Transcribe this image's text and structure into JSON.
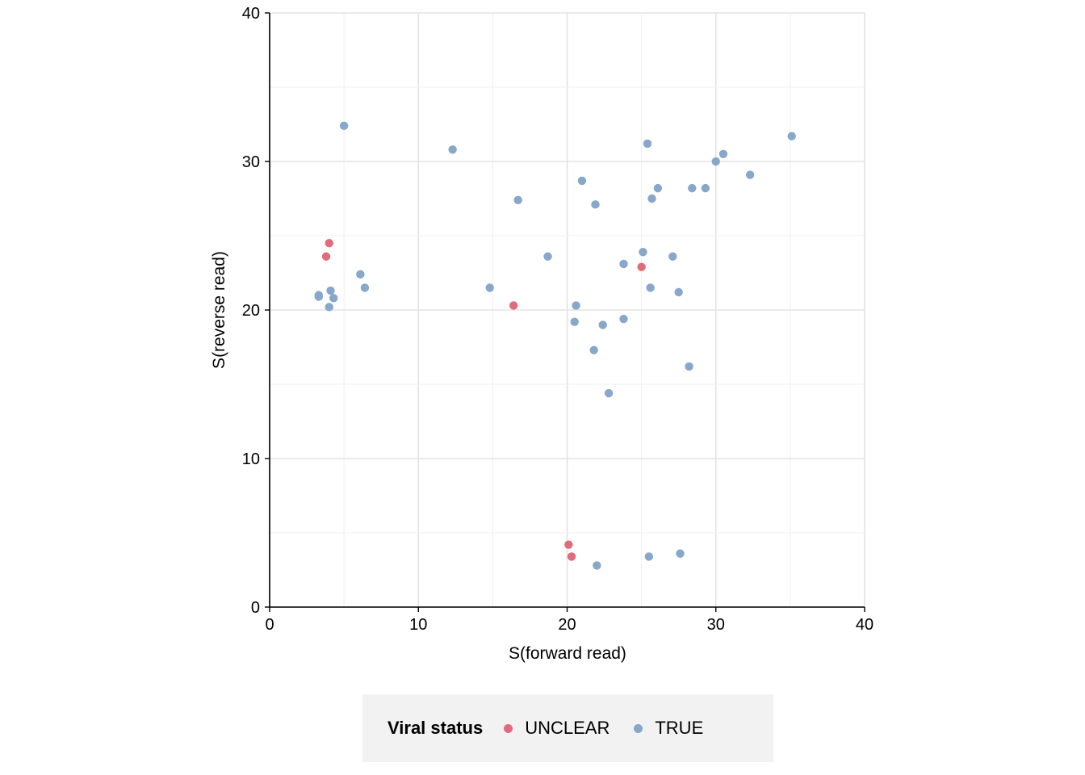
{
  "chart_data": {
    "type": "scatter",
    "xlabel": "S(forward read)",
    "ylabel": "S(reverse read)",
    "xlim": [
      0,
      40
    ],
    "ylim": [
      0,
      40
    ],
    "xticks": [
      "0",
      "10",
      "20",
      "30",
      "40"
    ],
    "yticks": [
      "0",
      "10",
      "20",
      "30",
      "40"
    ],
    "grid": true,
    "legend": {
      "title": "Viral status",
      "position": "bottom",
      "entries": [
        {
          "name": "UNCLEAR",
          "color": "#e06b7a"
        },
        {
          "name": "TRUE",
          "color": "#87a7cb"
        }
      ]
    },
    "series": [
      {
        "name": "UNCLEAR",
        "color": "#e06b7a",
        "points": [
          [
            4.0,
            24.5
          ],
          [
            3.8,
            23.6
          ],
          [
            16.4,
            20.3
          ],
          [
            25.0,
            22.9
          ],
          [
            20.1,
            4.2
          ],
          [
            20.3,
            3.4
          ]
        ]
      },
      {
        "name": "TRUE",
        "color": "#87a7cb",
        "points": [
          [
            5.0,
            32.4
          ],
          [
            12.3,
            30.8
          ],
          [
            3.3,
            21.0
          ],
          [
            3.3,
            20.9
          ],
          [
            4.1,
            21.3
          ],
          [
            4.3,
            20.8
          ],
          [
            4.0,
            20.2
          ],
          [
            6.1,
            22.4
          ],
          [
            6.4,
            21.5
          ],
          [
            14.8,
            21.5
          ],
          [
            16.7,
            27.4
          ],
          [
            18.7,
            23.6
          ],
          [
            21.0,
            28.7
          ],
          [
            21.9,
            27.1
          ],
          [
            20.6,
            20.3
          ],
          [
            20.5,
            19.2
          ],
          [
            22.4,
            19.0
          ],
          [
            23.8,
            19.4
          ],
          [
            21.8,
            17.3
          ],
          [
            22.8,
            14.4
          ],
          [
            23.8,
            23.1
          ],
          [
            25.1,
            23.9
          ],
          [
            25.4,
            31.2
          ],
          [
            25.7,
            27.5
          ],
          [
            26.1,
            28.2
          ],
          [
            25.6,
            21.5
          ],
          [
            27.1,
            23.6
          ],
          [
            27.5,
            21.2
          ],
          [
            28.2,
            16.2
          ],
          [
            28.4,
            28.2
          ],
          [
            29.3,
            28.2
          ],
          [
            30.0,
            30.0
          ],
          [
            30.5,
            30.5
          ],
          [
            32.3,
            29.1
          ],
          [
            35.1,
            31.7
          ],
          [
            22.0,
            2.8
          ],
          [
            25.5,
            3.4
          ],
          [
            27.6,
            3.6
          ]
        ]
      }
    ]
  }
}
